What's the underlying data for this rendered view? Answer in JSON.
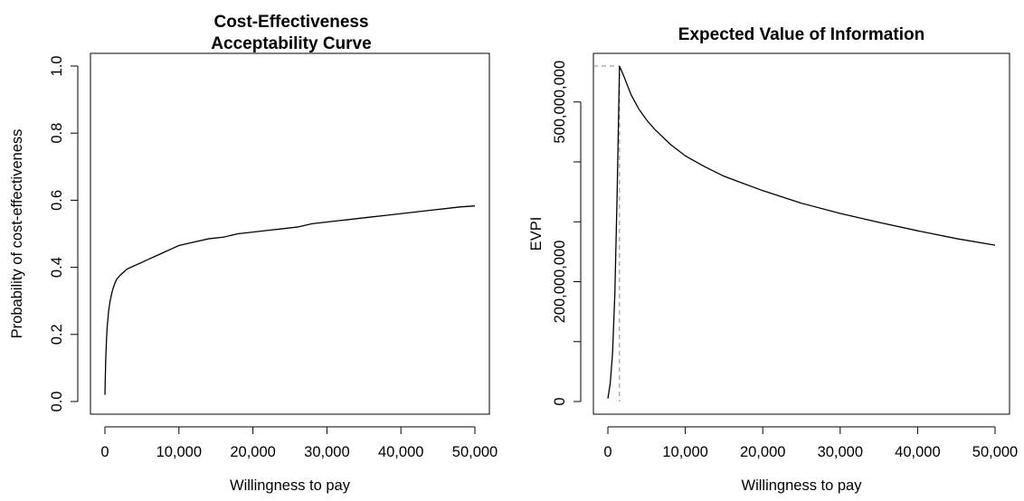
{
  "chart_data": [
    {
      "type": "line",
      "title": [
        "Cost-Effectiveness",
        "Acceptability Curve"
      ],
      "xlabel": "Willingness to pay",
      "ylabel": "Probability of cost-effectiveness",
      "xlim": [
        0,
        50000
      ],
      "ylim": [
        0,
        1
      ],
      "x_ticks": [
        0,
        10000,
        20000,
        30000,
        40000,
        50000
      ],
      "x_tick_labels": [
        "0",
        "10,000",
        "20,000",
        "30,000",
        "40,000",
        "50,000"
      ],
      "y_ticks": [
        0,
        0.2,
        0.4,
        0.6,
        0.8,
        1.0
      ],
      "y_tick_labels": [
        "0.0",
        "0.2",
        "0.4",
        "0.6",
        "0.8",
        "1.0"
      ],
      "grid": false,
      "series": [
        {
          "x": [
            0,
            100,
            200,
            300,
            500,
            700,
            1000,
            1300,
            1600,
            2000,
            2500,
            3000,
            3500,
            4000,
            5000,
            6000,
            7000,
            8000,
            9000,
            10000,
            12000,
            14000,
            16000,
            18000,
            20000,
            22000,
            24000,
            26000,
            28000,
            30000,
            32000,
            34000,
            36000,
            38000,
            40000,
            42000,
            44000,
            46000,
            48000,
            50000
          ],
          "y": [
            0.02,
            0.12,
            0.18,
            0.22,
            0.27,
            0.3,
            0.33,
            0.35,
            0.365,
            0.375,
            0.385,
            0.395,
            0.4,
            0.405,
            0.415,
            0.425,
            0.435,
            0.445,
            0.455,
            0.465,
            0.475,
            0.485,
            0.49,
            0.5,
            0.505,
            0.51,
            0.515,
            0.52,
            0.53,
            0.535,
            0.54,
            0.545,
            0.55,
            0.555,
            0.56,
            0.565,
            0.57,
            0.575,
            0.58,
            0.583
          ]
        }
      ]
    },
    {
      "type": "line",
      "title": [
        "Expected Value of Information"
      ],
      "xlabel": "Willingness to pay",
      "ylabel": "EVPI",
      "xlim": [
        0,
        50000
      ],
      "ylim": [
        0,
        560000000
      ],
      "x_ticks": [
        0,
        10000,
        20000,
        30000,
        40000,
        50000
      ],
      "x_tick_labels": [
        "0",
        "10,000",
        "20,000",
        "30,000",
        "40,000",
        "50,000"
      ],
      "y_ticks": [
        0,
        100000000,
        200000000,
        300000000,
        400000000,
        500000000
      ],
      "y_tick_labels": [
        "0",
        "",
        "200,000,000",
        "",
        "",
        "500,000,000"
      ],
      "grid": false,
      "series": [
        {
          "x": [
            0,
            300,
            600,
            900,
            1200,
            1500,
            2000,
            3000,
            4000,
            5000,
            6000,
            8000,
            10000,
            12500,
            15000,
            17500,
            20000,
            25000,
            30000,
            35000,
            40000,
            45000,
            50000
          ],
          "y": [
            5000000,
            30000000,
            80000000,
            180000000,
            350000000,
            560000000,
            545000000,
            512000000,
            488000000,
            470000000,
            455000000,
            430000000,
            410000000,
            392000000,
            376000000,
            364000000,
            352000000,
            331000000,
            314000000,
            299000000,
            285000000,
            272000000,
            261000000
          ]
        }
      ],
      "reference_lines": {
        "peak_x": 1500,
        "peak_y": 560000000,
        "style": "dashed",
        "color": "#888888"
      }
    }
  ]
}
